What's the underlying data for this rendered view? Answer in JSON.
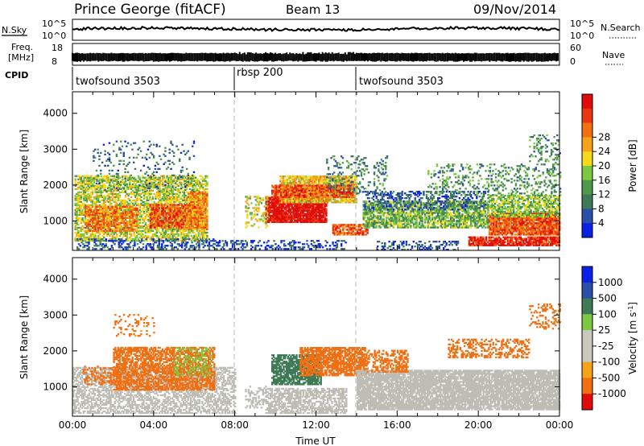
{
  "header": {
    "station": "Prince George (fitACF)",
    "beam": "Beam 13",
    "date": "09/Nov/2014"
  },
  "status": {
    "nsky_label": "N.Sky",
    "nsearch_label": "N.Search",
    "nsky_ticks": [
      "10^5",
      "10^0"
    ],
    "nsearch_ticks": [
      "10^5",
      "10^0"
    ],
    "freq_label": "Freq.",
    "freq_unit": "[MHz]",
    "freq_ticks": [
      "18",
      "8"
    ],
    "nave_label": "Nave",
    "nave_ticks": [
      "60",
      "0"
    ],
    "cpid_label": "CPID",
    "cpid_segments": [
      {
        "start": 0,
        "end": 8,
        "name": "twofsound 3503"
      },
      {
        "start": 8,
        "end": 14,
        "name": "rbsp 200"
      },
      {
        "start": 14,
        "end": 24,
        "name": "twofsound 3503"
      }
    ]
  },
  "colors": {
    "power": [
      "#0a22e6",
      "#2b4fa8",
      "#3e7a55",
      "#4f9a4a",
      "#7ac940",
      "#f5d91a",
      "#f7a31a",
      "#f26f12",
      "#ea3712",
      "#e00c0c"
    ],
    "velocity": [
      "#e00c0c",
      "#f26f12",
      "#f7a31a",
      "#c8c8be",
      "#c8c8be",
      "#7ac940",
      "#3e7a55",
      "#2b4fa8",
      "#0a22e6"
    ],
    "gs": "#bdbdb5"
  },
  "chart_data": [
    {
      "type": "heatmap",
      "panel": "power",
      "xlabel": "",
      "ylabel": "Slant Range [km]",
      "xlim": [
        0,
        24
      ],
      "ylim": [
        180,
        4600
      ],
      "yticks": [
        "1000",
        "2000",
        "3000",
        "4000"
      ],
      "colorbar": {
        "label": "Power [dB]",
        "ticks": [
          "4",
          "8",
          "12",
          "16",
          "20",
          "24",
          "28"
        ],
        "range": [
          0,
          30
        ]
      },
      "blobs": [
        {
          "t0": 0.1,
          "t1": 6.6,
          "r0": 430,
          "r1": 2250,
          "v": 15,
          "density": 0.62
        },
        {
          "t0": 0.6,
          "t1": 3.2,
          "r0": 700,
          "r1": 1400,
          "v": 22,
          "density": 0.7
        },
        {
          "t0": 3.8,
          "t1": 6.4,
          "r0": 800,
          "r1": 1450,
          "v": 24,
          "density": 0.78
        },
        {
          "t0": 5.6,
          "t1": 6.6,
          "r0": 750,
          "r1": 1800,
          "v": 21,
          "density": 0.7
        },
        {
          "t0": 0.2,
          "t1": 7.0,
          "r0": 200,
          "r1": 480,
          "v": 5,
          "density": 0.38
        },
        {
          "t0": 1.0,
          "t1": 6.0,
          "r0": 1800,
          "r1": 3200,
          "v": 7,
          "density": 0.12
        },
        {
          "t0": 7.0,
          "t1": 13.5,
          "r0": 200,
          "r1": 450,
          "v": 4,
          "density": 0.3
        },
        {
          "t0": 9.5,
          "t1": 12.5,
          "r0": 950,
          "r1": 1650,
          "v": 29,
          "density": 0.92
        },
        {
          "t0": 10.2,
          "t1": 14.0,
          "r0": 1500,
          "r1": 2250,
          "v": 18,
          "density": 0.78
        },
        {
          "t0": 9.8,
          "t1": 13.8,
          "r0": 1650,
          "r1": 2000,
          "v": 25,
          "density": 0.7
        },
        {
          "t0": 12.5,
          "t1": 15.5,
          "r0": 1700,
          "r1": 2800,
          "v": 8,
          "density": 0.22
        },
        {
          "t0": 12.8,
          "t1": 14.5,
          "r0": 600,
          "r1": 900,
          "v": 24,
          "density": 0.75
        },
        {
          "t0": 8.5,
          "t1": 9.6,
          "r0": 800,
          "r1": 1700,
          "v": 16,
          "density": 0.35
        },
        {
          "t0": 14.3,
          "t1": 20.5,
          "r0": 800,
          "r1": 1550,
          "v": 12,
          "density": 0.72
        },
        {
          "t0": 14.3,
          "t1": 20.5,
          "r0": 1300,
          "r1": 1800,
          "v": 5,
          "density": 0.35
        },
        {
          "t0": 20.5,
          "t1": 24.0,
          "r0": 600,
          "r1": 1200,
          "v": 24,
          "density": 0.9
        },
        {
          "t0": 20.5,
          "t1": 24.0,
          "r0": 1100,
          "r1": 1700,
          "v": 13,
          "density": 0.65
        },
        {
          "t0": 19.5,
          "t1": 24.0,
          "r0": 300,
          "r1": 550,
          "v": 27,
          "density": 0.85
        },
        {
          "t0": 15.0,
          "t1": 19.0,
          "r0": 180,
          "r1": 420,
          "v": 5,
          "density": 0.3
        },
        {
          "t0": 17.5,
          "t1": 24.0,
          "r0": 1700,
          "r1": 2600,
          "v": 10,
          "density": 0.22
        },
        {
          "t0": 22.5,
          "t1": 24.0,
          "r0": 2600,
          "r1": 3400,
          "v": 9,
          "density": 0.25
        }
      ]
    },
    {
      "type": "heatmap",
      "panel": "velocity",
      "xlabel": "Time UT",
      "ylabel": "Slant Range [km]",
      "xlim": [
        0,
        24
      ],
      "ylim": [
        180,
        4600
      ],
      "xticks": [
        "00:00",
        "04:00",
        "08:00",
        "12:00",
        "16:00",
        "20:00",
        "00:00"
      ],
      "yticks": [
        "1000",
        "2000",
        "3000",
        "4000"
      ],
      "colorbar": {
        "label": "Velocity [m s^-1]",
        "ticks": [
          "-1000",
          "-500",
          "-100",
          "-25",
          "25",
          "100",
          "500",
          "1000"
        ]
      },
      "blobs": [
        {
          "t0": 0.0,
          "t1": 8.0,
          "r0": 250,
          "r1": 1550,
          "v": 0,
          "density": 0.55
        },
        {
          "t0": 2.0,
          "t1": 7.0,
          "r0": 900,
          "r1": 2100,
          "v": -250,
          "density": 0.65
        },
        {
          "t0": 0.5,
          "t1": 2.5,
          "r0": 1050,
          "r1": 1550,
          "v": -200,
          "density": 0.35
        },
        {
          "t0": 5.0,
          "t1": 6.8,
          "r0": 1300,
          "r1": 2100,
          "v": 60,
          "density": 0.3
        },
        {
          "t0": 8.5,
          "t1": 9.5,
          "r0": 400,
          "r1": 1000,
          "v": 0,
          "density": 0.35
        },
        {
          "t0": 9.8,
          "t1": 12.2,
          "r0": 1050,
          "r1": 1900,
          "v": 250,
          "density": 0.75
        },
        {
          "t0": 11.2,
          "t1": 14.5,
          "r0": 1300,
          "r1": 2100,
          "v": -250,
          "density": 0.75
        },
        {
          "t0": 9.5,
          "t1": 13.5,
          "r0": 250,
          "r1": 950,
          "v": 0,
          "density": 0.6
        },
        {
          "t0": 14.0,
          "t1": 24.0,
          "r0": 350,
          "r1": 1450,
          "v": 0,
          "density": 0.88
        },
        {
          "t0": 14.5,
          "t1": 16.5,
          "r0": 1400,
          "r1": 2000,
          "v": -200,
          "density": 0.5
        },
        {
          "t0": 18.5,
          "t1": 22.5,
          "r0": 1800,
          "r1": 2300,
          "v": -250,
          "density": 0.35
        },
        {
          "t0": 22.5,
          "t1": 24.0,
          "r0": 2600,
          "r1": 3300,
          "v": -300,
          "density": 0.3
        },
        {
          "t0": 2.0,
          "t1": 4.0,
          "r0": 2400,
          "r1": 3000,
          "v": -150,
          "density": 0.15
        }
      ]
    }
  ]
}
